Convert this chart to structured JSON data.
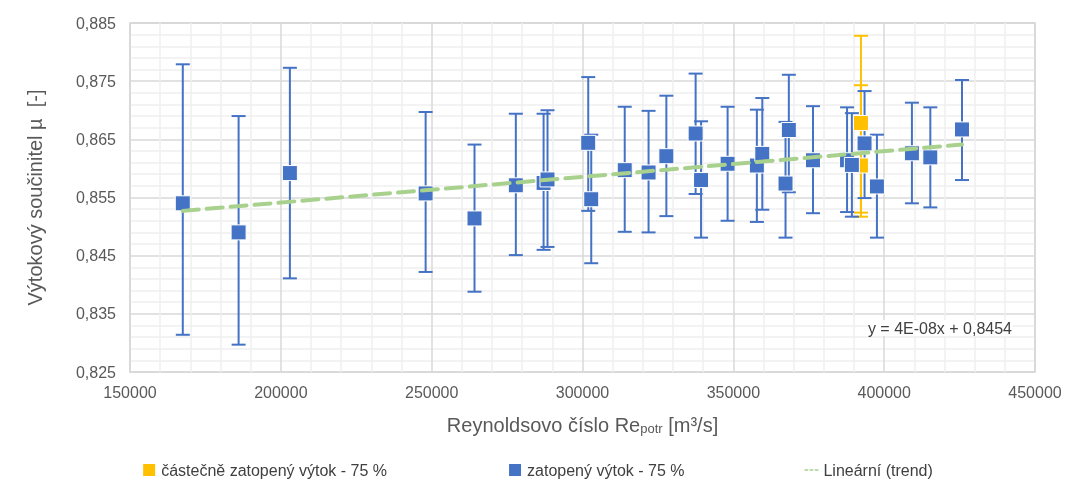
{
  "chart_data": {
    "type": "scatter",
    "xlabel": "Reynoldsovo číslo Re$_{potr}$ [m³/s]",
    "ylabel": "Výtokový součinitel µ  [-]",
    "xlim": [
      150000,
      450000
    ],
    "xticks": [
      150000,
      200000,
      250000,
      300000,
      350000,
      400000,
      450000
    ],
    "ylim": [
      0.825,
      0.885
    ],
    "yticks": [
      {
        "value": 0.825,
        "label": "0,825"
      },
      {
        "value": 0.835,
        "label": "0,835"
      },
      {
        "value": 0.845,
        "label": "0,845"
      },
      {
        "value": 0.855,
        "label": "0,855"
      },
      {
        "value": 0.865,
        "label": "0,865"
      },
      {
        "value": 0.875,
        "label": "0,875"
      },
      {
        "value": 0.885,
        "label": "0,885"
      }
    ],
    "grid": true,
    "legend": "bottom",
    "marker": "square",
    "annotations": [
      "y = 4E-08x + 0,8454"
    ],
    "series": [
      {
        "name": "částečně zatopený výtok - 75 %",
        "color": "#ffc000",
        "x": [
          392300,
          392300
        ],
        "values": [
          0.8678,
          0.8605
        ],
        "errors": [
          [
            0.8524,
            0.8828
          ],
          [
            0.8517,
            0.8743
          ]
        ]
      },
      {
        "name": "zatopený výtok - 75 %",
        "color": "#4472c4",
        "x": [
          167500,
          186000,
          203000,
          248000,
          264200,
          277900,
          287100,
          288400,
          301900,
          302900,
          314000,
          321900,
          327800,
          337500,
          339300,
          348100,
          357800,
          359600,
          367300,
          368400,
          376400,
          387700,
          389300,
          393500,
          397600,
          409200,
          415300,
          425800
        ],
        "values": [
          0.854,
          0.849,
          0.8592,
          0.8557,
          0.8514,
          0.8571,
          0.8575,
          0.8581,
          0.8644,
          0.8547,
          0.8597,
          0.8593,
          0.8621,
          0.866,
          0.858,
          0.8608,
          0.8605,
          0.8625,
          0.8574,
          0.8666,
          0.8614,
          0.8614,
          0.8606,
          0.8643,
          0.8569,
          0.8626,
          0.8619,
          0.8667
        ],
        "errors": [
          [
            0.8314,
            0.8779
          ],
          [
            0.8297,
            0.869
          ],
          [
            0.8411,
            0.8773
          ],
          [
            0.8422,
            0.8697
          ],
          [
            0.8388,
            0.8641
          ],
          [
            0.8451,
            0.8694
          ],
          [
            0.846,
            0.8694
          ],
          [
            0.8465,
            0.87
          ],
          [
            0.8527,
            0.8757
          ],
          [
            0.8437,
            0.8658
          ],
          [
            0.8491,
            0.8706
          ],
          [
            0.849,
            0.8699
          ],
          [
            0.8518,
            0.8725
          ],
          [
            0.8556,
            0.8763
          ],
          [
            0.8481,
            0.8681
          ],
          [
            0.851,
            0.8706
          ],
          [
            0.8508,
            0.8701
          ],
          [
            0.8529,
            0.8721
          ],
          [
            0.8481,
            0.868
          ],
          [
            0.8559,
            0.8761
          ],
          [
            0.8523,
            0.8707
          ],
          [
            0.8525,
            0.8705
          ],
          [
            0.8517,
            0.8695
          ],
          [
            0.8549,
            0.8733
          ],
          [
            0.8481,
            0.8658
          ],
          [
            0.854,
            0.8713
          ],
          [
            0.8533,
            0.8705
          ],
          [
            0.858,
            0.8752
          ]
        ]
      },
      {
        "name": "Lineární (trend)",
        "type": "line",
        "color": "#a9d18e",
        "line_style": "dashed",
        "marker": "none",
        "x": [
          167500,
          425800
        ],
        "values": [
          0.8527,
          0.8641
        ]
      }
    ]
  }
}
